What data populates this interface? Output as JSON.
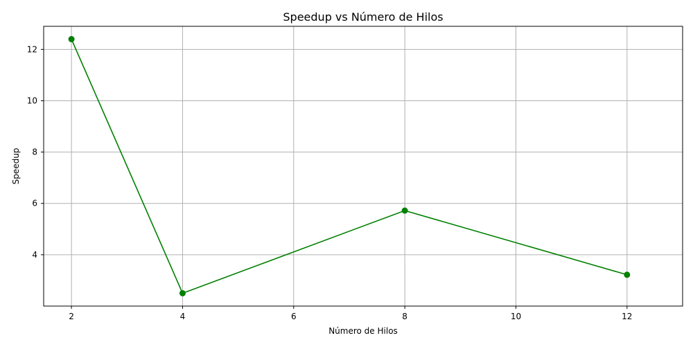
{
  "chart_data": {
    "type": "line",
    "title": "Speedup vs Número de Hilos",
    "xlabel": "Número de Hilos",
    "ylabel": "Speedup",
    "x": [
      2,
      4,
      8,
      12
    ],
    "series": [
      {
        "values": [
          12.4,
          2.5,
          5.72,
          3.22
        ],
        "color": "#008000",
        "marker": "circle"
      }
    ],
    "xticks": [
      2,
      4,
      6,
      8,
      10,
      12
    ],
    "yticks": [
      4,
      6,
      8,
      10,
      12
    ],
    "xlim": [
      1.5,
      13.0
    ],
    "ylim": [
      2.0,
      12.9
    ],
    "grid": true,
    "legend": "none"
  }
}
